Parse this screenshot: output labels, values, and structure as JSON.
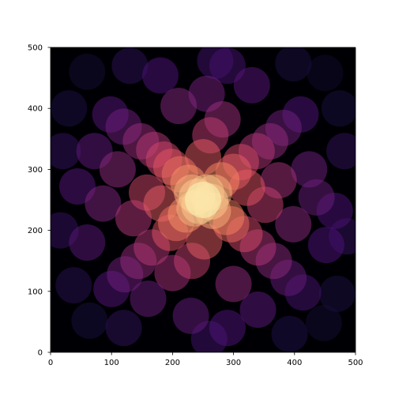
{
  "chart_data": {
    "type": "scatter",
    "title": "",
    "xlabel": "",
    "ylabel": "",
    "xlim": [
      0,
      500
    ],
    "ylim": [
      0,
      500
    ],
    "xticks": [
      "0",
      "100",
      "200",
      "300",
      "400",
      "500"
    ],
    "yticks": [
      "0",
      "100",
      "200",
      "300",
      "400",
      "500"
    ],
    "grid": false,
    "legend": "none",
    "background": "#000004",
    "colormap": "magma",
    "marker_alpha": 0.5,
    "density_center": [
      250,
      250
    ],
    "points": [
      {
        "x": 250,
        "y": 250
      },
      {
        "x": 240,
        "y": 255
      },
      {
        "x": 262,
        "y": 247
      },
      {
        "x": 255,
        "y": 262
      },
      {
        "x": 244,
        "y": 240
      },
      {
        "x": 232,
        "y": 262
      },
      {
        "x": 268,
        "y": 262
      },
      {
        "x": 236,
        "y": 236
      },
      {
        "x": 266,
        "y": 232
      },
      {
        "x": 226,
        "y": 278
      },
      {
        "x": 280,
        "y": 282
      },
      {
        "x": 222,
        "y": 226
      },
      {
        "x": 288,
        "y": 222
      },
      {
        "x": 212,
        "y": 292
      },
      {
        "x": 300,
        "y": 296
      },
      {
        "x": 206,
        "y": 212
      },
      {
        "x": 296,
        "y": 210
      },
      {
        "x": 198,
        "y": 304
      },
      {
        "x": 312,
        "y": 312
      },
      {
        "x": 196,
        "y": 196
      },
      {
        "x": 318,
        "y": 194
      },
      {
        "x": 186,
        "y": 316
      },
      {
        "x": 322,
        "y": 270
      },
      {
        "x": 182,
        "y": 244
      },
      {
        "x": 250,
        "y": 320
      },
      {
        "x": 252,
        "y": 182
      },
      {
        "x": 170,
        "y": 332
      },
      {
        "x": 338,
        "y": 330
      },
      {
        "x": 166,
        "y": 172
      },
      {
        "x": 340,
        "y": 172
      },
      {
        "x": 158,
        "y": 262
      },
      {
        "x": 352,
        "y": 242
      },
      {
        "x": 262,
        "y": 356
      },
      {
        "x": 232,
        "y": 150
      },
      {
        "x": 148,
        "y": 346
      },
      {
        "x": 360,
        "y": 346
      },
      {
        "x": 144,
        "y": 150
      },
      {
        "x": 366,
        "y": 150
      },
      {
        "x": 136,
        "y": 220
      },
      {
        "x": 374,
        "y": 282
      },
      {
        "x": 282,
        "y": 382
      },
      {
        "x": 200,
        "y": 130
      },
      {
        "x": 120,
        "y": 370
      },
      {
        "x": 382,
        "y": 368
      },
      {
        "x": 122,
        "y": 128
      },
      {
        "x": 390,
        "y": 122
      },
      {
        "x": 110,
        "y": 300
      },
      {
        "x": 398,
        "y": 210
      },
      {
        "x": 210,
        "y": 404
      },
      {
        "x": 300,
        "y": 112
      },
      {
        "x": 98,
        "y": 390
      },
      {
        "x": 410,
        "y": 390
      },
      {
        "x": 100,
        "y": 104
      },
      {
        "x": 414,
        "y": 98
      },
      {
        "x": 86,
        "y": 244
      },
      {
        "x": 424,
        "y": 300
      },
      {
        "x": 256,
        "y": 424
      },
      {
        "x": 160,
        "y": 88
      },
      {
        "x": 72,
        "y": 330
      },
      {
        "x": 436,
        "y": 254
      },
      {
        "x": 330,
        "y": 438
      },
      {
        "x": 340,
        "y": 70
      },
      {
        "x": 60,
        "y": 180
      },
      {
        "x": 452,
        "y": 176
      },
      {
        "x": 180,
        "y": 454
      },
      {
        "x": 230,
        "y": 60
      },
      {
        "x": 44,
        "y": 272
      },
      {
        "x": 466,
        "y": 232
      },
      {
        "x": 290,
        "y": 470
      },
      {
        "x": 290,
        "y": 40
      },
      {
        "x": 30,
        "y": 400
      },
      {
        "x": 474,
        "y": 400
      },
      {
        "x": 38,
        "y": 110
      },
      {
        "x": 470,
        "y": 96
      },
      {
        "x": 130,
        "y": 470
      },
      {
        "x": 398,
        "y": 474
      },
      {
        "x": 120,
        "y": 40
      },
      {
        "x": 392,
        "y": 30
      },
      {
        "x": 20,
        "y": 330
      },
      {
        "x": 482,
        "y": 330
      },
      {
        "x": 270,
        "y": 478
      },
      {
        "x": 260,
        "y": 22
      },
      {
        "x": 60,
        "y": 460
      },
      {
        "x": 450,
        "y": 458
      },
      {
        "x": 64,
        "y": 52
      },
      {
        "x": 448,
        "y": 48
      },
      {
        "x": 16,
        "y": 200
      },
      {
        "x": 486,
        "y": 190
      }
    ]
  }
}
